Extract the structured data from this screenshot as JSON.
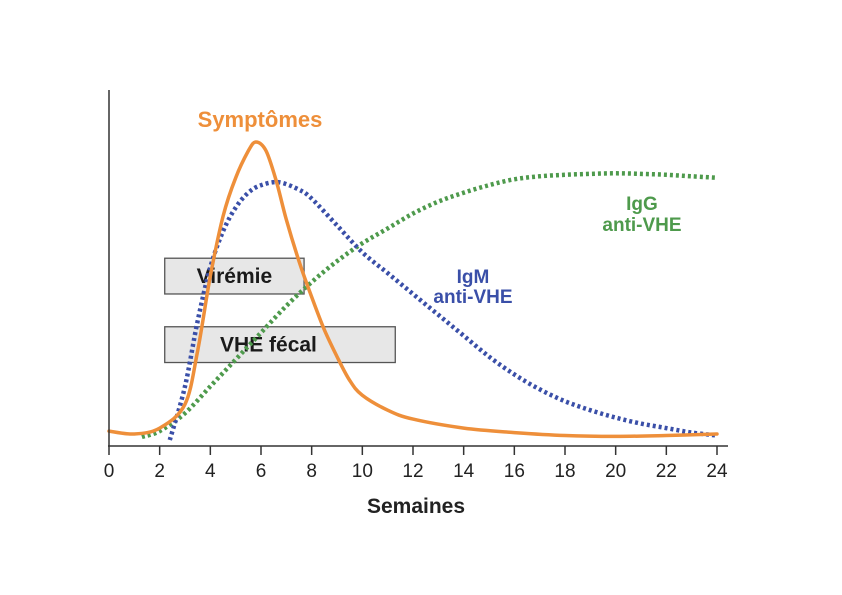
{
  "chart_data": {
    "type": "line",
    "xlabel": "Semaines",
    "ylabel": "",
    "xlim": [
      0,
      24
    ],
    "ylim": [
      0,
      100
    ],
    "x_ticks": [
      0,
      2,
      4,
      6,
      8,
      10,
      12,
      14,
      16,
      18,
      20,
      22,
      24
    ],
    "grid": false,
    "series": [
      {
        "name": "Symptômes",
        "color": "#ee8f3a",
        "style": "solid",
        "points": [
          [
            0,
            3
          ],
          [
            1,
            2
          ],
          [
            2,
            4
          ],
          [
            3,
            12
          ],
          [
            3.5,
            30
          ],
          [
            4,
            55
          ],
          [
            4.5,
            75
          ],
          [
            5,
            88
          ],
          [
            5.5,
            97
          ],
          [
            5.8,
            100
          ],
          [
            6.2,
            97
          ],
          [
            6.6,
            87
          ],
          [
            7,
            74
          ],
          [
            7.5,
            60
          ],
          [
            8,
            48
          ],
          [
            8.5,
            37
          ],
          [
            9,
            28
          ],
          [
            9.5,
            20
          ],
          [
            10,
            15
          ],
          [
            11,
            10
          ],
          [
            12,
            7
          ],
          [
            14,
            4
          ],
          [
            16,
            2.5
          ],
          [
            18,
            1.5
          ],
          [
            20,
            1.2
          ],
          [
            22,
            1.5
          ],
          [
            24,
            2
          ]
        ]
      },
      {
        "name": "IgM anti-VHE",
        "color": "#3a4fa8",
        "style": "dotted",
        "points": [
          [
            2.4,
            0
          ],
          [
            3,
            18
          ],
          [
            3.5,
            40
          ],
          [
            4,
            58
          ],
          [
            4.5,
            70
          ],
          [
            5,
            78
          ],
          [
            5.5,
            83
          ],
          [
            6,
            85.5
          ],
          [
            6.7,
            86.5
          ],
          [
            7.5,
            84
          ],
          [
            8,
            81
          ],
          [
            9,
            72
          ],
          [
            10,
            63
          ],
          [
            11,
            56
          ],
          [
            12,
            49
          ],
          [
            13,
            42
          ],
          [
            14,
            35
          ],
          [
            15,
            28
          ],
          [
            16,
            22
          ],
          [
            17,
            17
          ],
          [
            18,
            13
          ],
          [
            19,
            10
          ],
          [
            20,
            7.5
          ],
          [
            21,
            5.5
          ],
          [
            22,
            4
          ],
          [
            23,
            2.5
          ],
          [
            24,
            1.5
          ]
        ]
      },
      {
        "name": "IgG anti-VHE",
        "color": "#4e9a4c",
        "style": "dotted",
        "points": [
          [
            1.3,
            1
          ],
          [
            2,
            3
          ],
          [
            3,
            9
          ],
          [
            4,
            18
          ],
          [
            5,
            27
          ],
          [
            6,
            36
          ],
          [
            7,
            45
          ],
          [
            8,
            53
          ],
          [
            9,
            60
          ],
          [
            10,
            66
          ],
          [
            11,
            71
          ],
          [
            12,
            76
          ],
          [
            13,
            80
          ],
          [
            14,
            83
          ],
          [
            15,
            85.5
          ],
          [
            16,
            87.5
          ],
          [
            17,
            88.5
          ],
          [
            18,
            89
          ],
          [
            19,
            89.3
          ],
          [
            20,
            89.5
          ],
          [
            21,
            89.3
          ],
          [
            22,
            89
          ],
          [
            23,
            88.5
          ],
          [
            24,
            88
          ]
        ]
      }
    ],
    "bands": [
      {
        "label": "Virémie",
        "x_start": 2.2,
        "x_end": 7.7,
        "y_low": 49,
        "y_high": 61
      },
      {
        "label": "VHE fécal",
        "x_start": 2.2,
        "x_end": 11.3,
        "y_low": 26,
        "y_high": 38
      }
    ],
    "annotations": [
      {
        "text": "Symptômes",
        "color": "#ee8f3a"
      },
      {
        "text": "IgM",
        "color": "#3a4fa8"
      },
      {
        "text": "anti-VHE",
        "color": "#3a4fa8"
      },
      {
        "text": "IgG",
        "color": "#4e9a4c"
      },
      {
        "text": "anti-VHE",
        "color": "#4e9a4c"
      }
    ]
  },
  "colors": {
    "axis": "#333333",
    "band_fill": "#e4e4e4",
    "band_stroke": "#555555"
  }
}
